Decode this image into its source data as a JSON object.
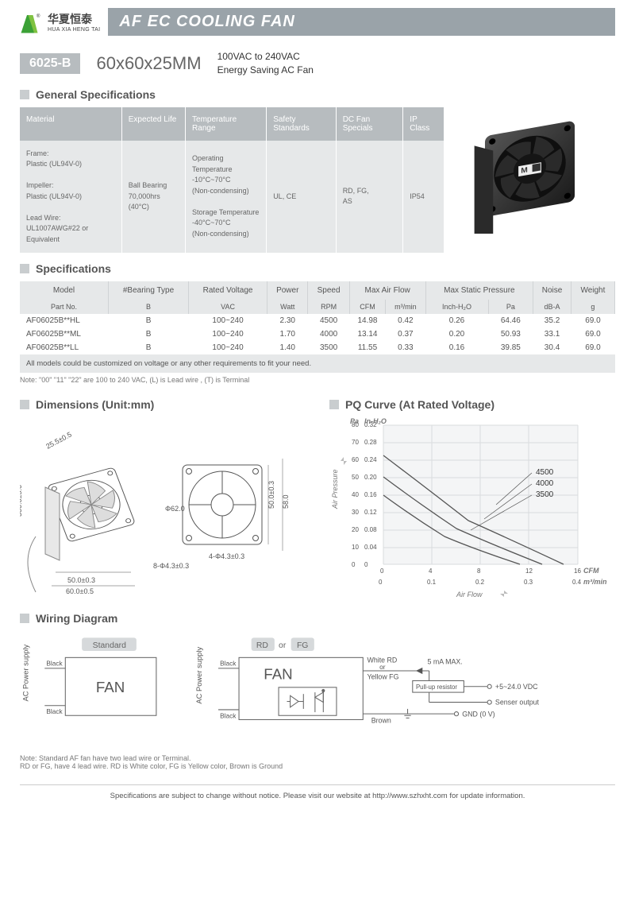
{
  "header": {
    "logo_cn": "华夏恒泰",
    "logo_en": "HUA XIA HENG TAI",
    "title": "AF EC COOLING FAN"
  },
  "model": {
    "badge": "6025-B",
    "size": "60x60x25MM",
    "desc1": "100VAC to 240VAC",
    "desc2": "Energy Saving AC Fan"
  },
  "sections": {
    "general": "General Specifications",
    "spec": "Specifications",
    "dimensions": "Dimensions (Unit:mm)",
    "pq": "PQ Curve (At Rated Voltage)",
    "wiring": "Wiring Diagram"
  },
  "general": {
    "headers": [
      "Material",
      "Expected Life",
      "Temperature Range",
      "Safety Standards",
      "DC Fan Specials",
      "IP Class"
    ],
    "material": "Frame:\nPlastic (UL94V-0)\n\nImpeller:\nPlastic (UL94V-0)\n\nLead Wire:\nUL1007AWG#22 or Equivalent",
    "life": "Ball Bearing\n70,000hrs (40°C)",
    "temp": "Operating Temperature\n-10°C~70°C\n(Non-condensing)\n\nStorage Temperature\n-40°C~70°C\n(Non-condensing)",
    "safety": "UL, CE",
    "dcfan": "RD, FG,\nAS",
    "ip": "IP54"
  },
  "spec": {
    "h1": [
      "Model",
      "#Bearing Type",
      "Rated Voltage",
      "Power",
      "Speed",
      "Max Air Flow",
      "Max Static Pressure",
      "Noise",
      "Weight"
    ],
    "h2": [
      "Part No.",
      "B",
      "VAC",
      "Watt",
      "RPM",
      "CFM",
      "m³/min",
      "Inch-H₂O",
      "Pa",
      "dB-A",
      "g"
    ],
    "rows": [
      [
        "AF06025B**HL",
        "B",
        "100~240",
        "2.30",
        "4500",
        "14.98",
        "0.42",
        "0.26",
        "64.46",
        "35.2",
        "69.0"
      ],
      [
        "AF06025B**ML",
        "B",
        "100~240",
        "1.70",
        "4000",
        "13.14",
        "0.37",
        "0.20",
        "50.93",
        "33.1",
        "69.0"
      ],
      [
        "AF06025B**LL",
        "B",
        "100~240",
        "1.40",
        "3500",
        "11.55",
        "0.33",
        "0.16",
        "39.85",
        "30.4",
        "69.0"
      ]
    ],
    "note_row": "All models could be customized on voltage or any other requirements to fit your need.",
    "note2": "Note: \"00\" \"11\" \"22\" are 100 to 240 VAC, (L) is Lead wire , (T) is Terminal"
  },
  "dims": {
    "d1": "25.5±0.5",
    "d2": "300.0±5.0",
    "d3": "50.0±0.3",
    "d4": "60.0±0.5",
    "d5": "Φ62.0",
    "d6": "8-Φ4.3±0.3",
    "d7": "50.0±0.3",
    "d8": "58.0",
    "d9": "4-Φ4.3±0.3"
  },
  "pq": {
    "ylabel": "Air Pressure",
    "xlabel": "Air Flow",
    "pa_ticks": [
      "0",
      "10",
      "20",
      "30",
      "40",
      "50",
      "60",
      "70",
      "80"
    ],
    "inh2o_ticks": [
      "0",
      "0.04",
      "0.08",
      "0.12",
      "0.16",
      "0.20",
      "0.24",
      "0.28",
      "0.32"
    ],
    "cfm_ticks": [
      "0",
      "4",
      "8",
      "12",
      "16"
    ],
    "m3_ticks": [
      "0",
      "0.1",
      "0.2",
      "0.3",
      "0.4"
    ],
    "pa_label": "Pa",
    "inh2o_label": "In-H₂O",
    "cfm_label": "CFM",
    "m3_label": "m³/min",
    "series": [
      "4500",
      "4000",
      "3500"
    ],
    "bg": "#f4f5f6",
    "grid": "#d9dcde",
    "line": "#555555"
  },
  "wiring": {
    "std_label": "Standard",
    "rd": "RD",
    "or": "or",
    "fg": "FG",
    "fan": "FAN",
    "ac": "AC Power supply",
    "black": "Black",
    "white_rd": "White RD",
    "yellow_fg": "Yellow FG",
    "brown": "Brown",
    "pullup": "Pull-up resistor",
    "max": "5 mA MAX.",
    "vdc": "+5~24.0 VDC",
    "sensor": "Senser output",
    "gnd": "GND (0 V)",
    "note": "Note: Standard AF fan have two lead wire or Terminal.\n        RD or FG, have 4 lead wire. RD is White color, FG is Yellow color, Brown is Ground"
  },
  "footer": "Specifications are subject to change without notice. Please visit our website at http://www.szhxht.com for update information."
}
